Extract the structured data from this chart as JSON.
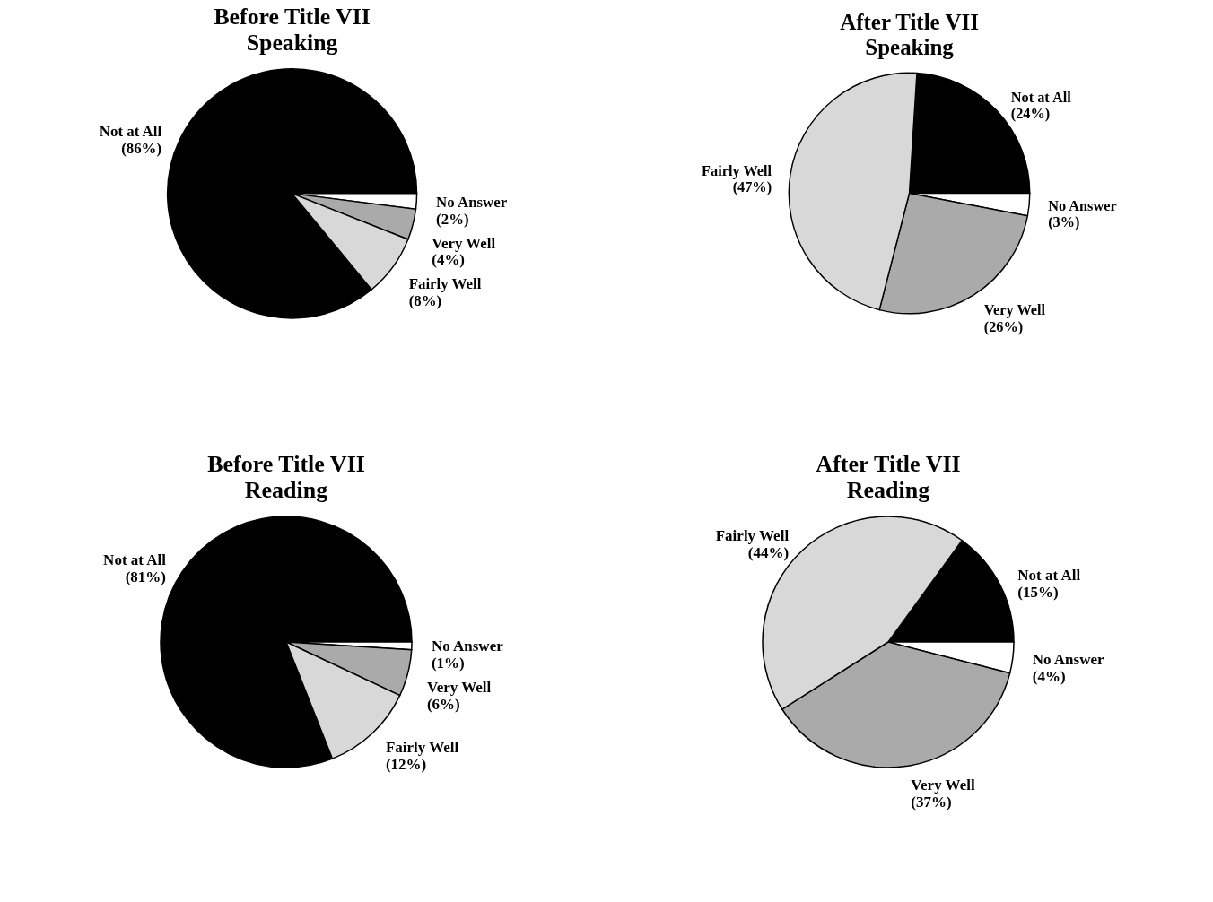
{
  "chart_data": [
    {
      "type": "pie",
      "title": "Before Title VII",
      "subtitle": "Speaking",
      "categories": [
        "Not at All",
        "No Answer",
        "Very Well",
        "Fairly Well"
      ],
      "values": [
        86,
        2,
        4,
        8
      ],
      "value_labels": [
        "(86%)",
        "(2%)",
        "(4%)",
        "(8%)"
      ],
      "colors": [
        "#000000",
        "#ffffff",
        "#aaaaaa",
        "#d8d8d8"
      ]
    },
    {
      "type": "pie",
      "title": "After Title VII",
      "subtitle": "Speaking",
      "categories": [
        "Not at All",
        "No Answer",
        "Very Well",
        "Fairly Well"
      ],
      "values": [
        24,
        3,
        26,
        47
      ],
      "value_labels": [
        "(24%)",
        "(3%)",
        "(26%)",
        "(47%)"
      ],
      "colors": [
        "#000000",
        "#ffffff",
        "#aaaaaa",
        "#d8d8d8"
      ]
    },
    {
      "type": "pie",
      "title": "Before Title VII",
      "subtitle": "Reading",
      "categories": [
        "Not at All",
        "No Answer",
        "Very Well",
        "Fairly Well"
      ],
      "values": [
        81,
        1,
        6,
        12
      ],
      "value_labels": [
        "(81%)",
        "(1%)",
        "(6%)",
        "(12%)"
      ],
      "colors": [
        "#000000",
        "#ffffff",
        "#aaaaaa",
        "#d8d8d8"
      ]
    },
    {
      "type": "pie",
      "title": "After Title VII",
      "subtitle": "Reading",
      "categories": [
        "Not at All",
        "No Answer",
        "Very Well",
        "Fairly Well"
      ],
      "values": [
        15,
        4,
        37,
        44
      ],
      "value_labels": [
        "(15%)",
        "(4%)",
        "(37%)",
        "(44%)"
      ],
      "colors": [
        "#000000",
        "#ffffff",
        "#aaaaaa",
        "#d8d8d8"
      ]
    }
  ]
}
